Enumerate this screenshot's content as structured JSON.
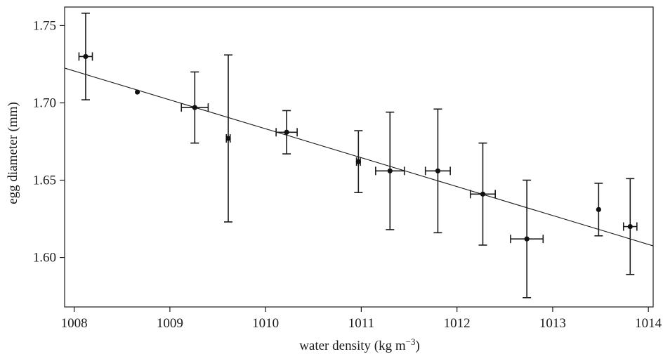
{
  "chart_data": {
    "type": "scatter",
    "title": "",
    "xlabel": "water density (kg m",
    "xlabel_superscript": "−3",
    "xlabel_suffix": ")",
    "ylabel": "egg diameter (mm)",
    "xlim": [
      1007.9,
      1014.05
    ],
    "ylim": [
      1.568,
      1.762
    ],
    "x_ticks": [
      1008,
      1009,
      1010,
      1011,
      1012,
      1013,
      1014
    ],
    "x_tick_labels": [
      "1008",
      "1009",
      "1010",
      "1011",
      "1012",
      "1013",
      "1014"
    ],
    "y_ticks": [
      1.6,
      1.65,
      1.7,
      1.75
    ],
    "y_tick_labels": [
      "1.60",
      "1.65",
      "1.70",
      "1.75"
    ],
    "grid": false,
    "points": [
      {
        "x": 1008.12,
        "y": 1.73,
        "y_low": 1.702,
        "y_high": 1.758,
        "x_low": 1008.05,
        "x_high": 1008.19
      },
      {
        "x": 1008.66,
        "y": 1.707,
        "y_low": 1.707,
        "y_high": 1.707,
        "x_low": 1008.66,
        "x_high": 1008.66
      },
      {
        "x": 1009.26,
        "y": 1.697,
        "y_low": 1.674,
        "y_high": 1.72,
        "x_low": 1009.12,
        "x_high": 1009.4
      },
      {
        "x": 1009.61,
        "y": 1.677,
        "y_low": 1.623,
        "y_high": 1.731,
        "x_low": 1009.59,
        "x_high": 1009.63
      },
      {
        "x": 1010.22,
        "y": 1.681,
        "y_low": 1.667,
        "y_high": 1.695,
        "x_low": 1010.11,
        "x_high": 1010.33
      },
      {
        "x": 1010.97,
        "y": 1.662,
        "y_low": 1.642,
        "y_high": 1.682,
        "x_low": 1010.95,
        "x_high": 1010.99
      },
      {
        "x": 1011.3,
        "y": 1.656,
        "y_low": 1.618,
        "y_high": 1.694,
        "x_low": 1011.15,
        "x_high": 1011.45
      },
      {
        "x": 1011.8,
        "y": 1.656,
        "y_low": 1.616,
        "y_high": 1.696,
        "x_low": 1011.67,
        "x_high": 1011.93
      },
      {
        "x": 1012.27,
        "y": 1.641,
        "y_low": 1.608,
        "y_high": 1.674,
        "x_low": 1012.14,
        "x_high": 1012.4
      },
      {
        "x": 1012.73,
        "y": 1.612,
        "y_low": 1.574,
        "y_high": 1.65,
        "x_low": 1012.56,
        "x_high": 1012.9
      },
      {
        "x": 1013.48,
        "y": 1.631,
        "y_low": 1.614,
        "y_high": 1.648,
        "x_low": 1013.48,
        "x_high": 1013.48
      },
      {
        "x": 1013.81,
        "y": 1.62,
        "y_low": 1.589,
        "y_high": 1.651,
        "x_low": 1013.74,
        "x_high": 1013.88
      }
    ],
    "fit_line": {
      "x": [
        1007.9,
        1014.05
      ],
      "y": [
        1.7225,
        1.6075
      ]
    }
  }
}
